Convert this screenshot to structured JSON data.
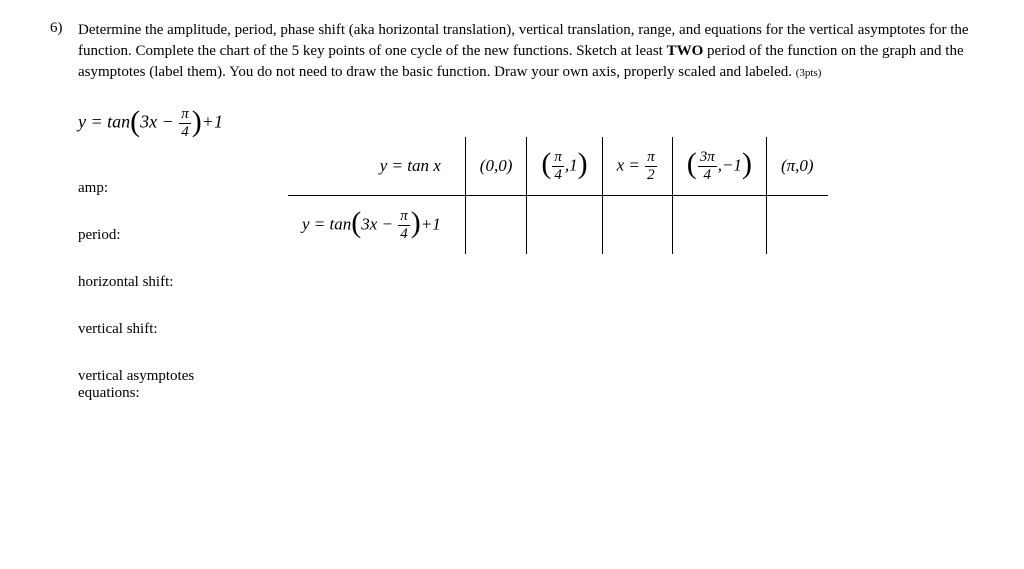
{
  "question": {
    "number": "6)",
    "text_part1": "Determine the amplitude, period, phase shift (aka horizontal translation), vertical translation, range, and equations for the vertical asymptotes for the function. Complete the chart of the 5 key points of one cycle of the new functions. Sketch at least ",
    "text_bold": "TWO",
    "text_part2": " period of the function on the graph and the asymptotes (label them). You do not need to draw the basic function. Draw your own axis, properly scaled and labeled. ",
    "points": "(3pts)"
  },
  "main_equation": {
    "prefix": "y = tan",
    "inner1": "3x −",
    "frac_num": "π",
    "frac_den": "4",
    "suffix": "+1"
  },
  "labels": {
    "amp": "amp:",
    "period": "period:",
    "hshift": "horizontal shift:",
    "vshift": "vertical shift:",
    "asymp_line1": "vertical asymptotes",
    "asymp_line2": "equations:"
  },
  "table": {
    "row1": {
      "func": "y = tan x",
      "c1_open": "(",
      "c1_a": "0",
      "c1_comma": ",",
      "c1_b": "0",
      "c1_close": ")",
      "c2_num": "π",
      "c2_den": "4",
      "c2_sep": ",",
      "c2_val": "1",
      "c3_pre": "x =",
      "c3_num": "π",
      "c3_den": "2",
      "c4_num": "3π",
      "c4_den": "4",
      "c4_sep": ",",
      "c4_val": "−1",
      "c5_open": "(",
      "c5_a": "π",
      "c5_comma": ",",
      "c5_b": "0",
      "c5_close": ")"
    },
    "row2": {
      "prefix": "y = tan",
      "inner1": "3x −",
      "frac_num": "π",
      "frac_den": "4",
      "suffix": "+1"
    }
  },
  "colors": {
    "text": "#000000",
    "background": "#ffffff",
    "border": "#000000"
  },
  "typography": {
    "body_size_pt": 11,
    "math_size_pt": 13,
    "frac_size_pt": 11,
    "points_size_pt": 8
  }
}
